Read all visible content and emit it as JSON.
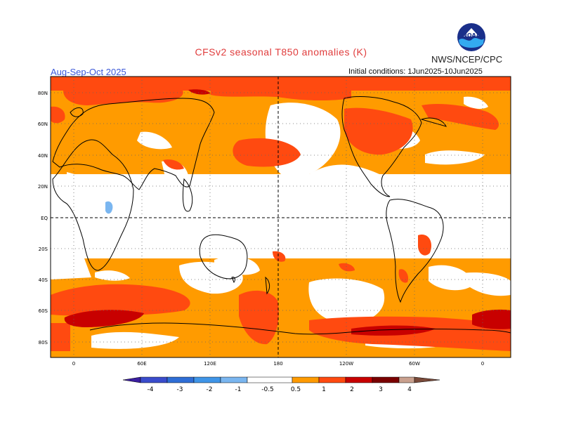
{
  "title": "CFSv2 seasonal T850 anomalies (K)",
  "organization": "NWS/NCEP/CPC",
  "logo_text": "NOAA",
  "period": "Aug-Sep-Oct 2025",
  "initial_conditions": "Initial conditions: 1Jun2025-10Jun2025",
  "lat_labels": [
    "80N",
    "60N",
    "40N",
    "20N",
    "EQ",
    "20S",
    "40S",
    "60S",
    "80S"
  ],
  "lon_labels": [
    "0",
    "60E",
    "120E",
    "180",
    "120W",
    "60W",
    "0"
  ],
  "legend": {
    "labels": [
      "-4",
      "-3",
      "-2",
      "-1",
      "-0.5",
      "0.5",
      "1",
      "2",
      "3",
      "4"
    ],
    "colors": [
      "#3a1ea0",
      "#3a4ccc",
      "#2f6ed6",
      "#3f95e8",
      "#7ab6f0",
      "#ffffff",
      "#ff9b00",
      "#ff4a10",
      "#c80000",
      "#7a0000",
      "#c9a08e",
      "#7a4a3a"
    ]
  },
  "colors": {
    "warm_05_1": "#ff9b00",
    "warm_1_2": "#ff4a10",
    "warm_2_3": "#c80000",
    "cool_05_1": "#7ab6f0",
    "title": "#e03c3c",
    "period": "#3b58d8"
  }
}
